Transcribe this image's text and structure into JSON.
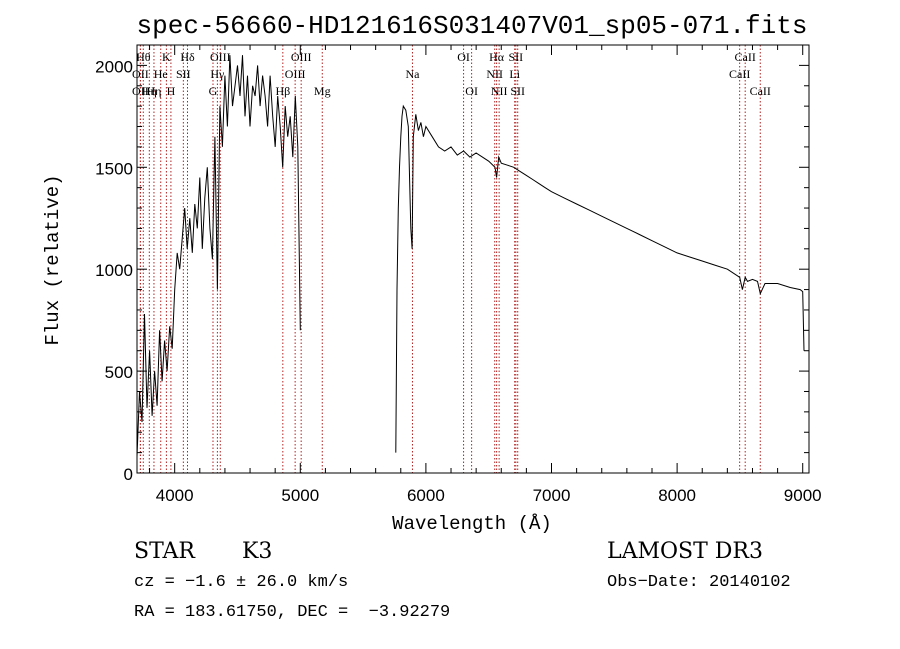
{
  "chart_data": {
    "type": "line",
    "title": "spec-56660-HD121616S031407V01_sp05-071.fits",
    "xlabel": "Wavelength (Å)",
    "ylabel": "Flux (relative)",
    "xlim": [
      3700,
      9050
    ],
    "ylim": [
      0,
      2100
    ],
    "xticks": [
      4000,
      5000,
      6000,
      7000,
      8000,
      9000
    ],
    "yticks": [
      0,
      500,
      1000,
      1500,
      2000
    ],
    "grid": false,
    "series": [
      {
        "x": [
          3700,
          3720,
          3740,
          3760,
          3780,
          3800,
          3820,
          3840,
          3860,
          3880,
          3900,
          3920,
          3940,
          3960,
          3980,
          4000,
          4020,
          4040,
          4060,
          4080,
          4100,
          4120,
          4140,
          4160,
          4180,
          4200,
          4220,
          4240,
          4260,
          4280,
          4300,
          4320,
          4340,
          4360,
          4380,
          4400,
          4420,
          4440,
          4460,
          4480,
          4500,
          4520,
          4540,
          4560,
          4580,
          4600,
          4620,
          4640,
          4660,
          4680,
          4700,
          4720,
          4740,
          4760,
          4780,
          4800,
          4820,
          4840,
          4860,
          4880,
          4900,
          4920,
          4940,
          4960,
          4980,
          5000,
          5760,
          5770,
          5780,
          5790,
          5800,
          5810,
          5820,
          5840,
          5860,
          5880,
          5890,
          5900,
          5920,
          5940,
          5960,
          5980,
          6000,
          6050,
          6100,
          6150,
          6200,
          6250,
          6300,
          6350,
          6400,
          6450,
          6500,
          6550,
          6563,
          6580,
          6600,
          6650,
          6700,
          6750,
          6800,
          6850,
          6900,
          6950,
          7000,
          7100,
          7200,
          7300,
          7400,
          7500,
          7600,
          7700,
          7800,
          7900,
          8000,
          8100,
          8200,
          8300,
          8400,
          8498,
          8520,
          8542,
          8560,
          8600,
          8640,
          8662,
          8700,
          8800,
          8900,
          8980,
          9000,
          9010
        ],
        "y": [
          80,
          400,
          250,
          780,
          320,
          600,
          280,
          500,
          330,
          700,
          450,
          650,
          500,
          720,
          610,
          900,
          1080,
          1000,
          1150,
          1300,
          1100,
          1250,
          1080,
          1320,
          1200,
          1450,
          1100,
          1350,
          1500,
          1200,
          1050,
          1650,
          900,
          1800,
          1600,
          1950,
          1700,
          2050,
          1800,
          1900,
          2000,
          1850,
          2050,
          1750,
          1950,
          1700,
          1900,
          1850,
          2000,
          1800,
          1950,
          1850,
          1700,
          1950,
          1750,
          1600,
          1850,
          1700,
          1500,
          1800,
          1650,
          1750,
          1550,
          1850,
          1600,
          700,
          100,
          900,
          1300,
          1500,
          1650,
          1750,
          1800,
          1780,
          1700,
          1200,
          1100,
          1650,
          1760,
          1680,
          1720,
          1650,
          1700,
          1650,
          1600,
          1580,
          1600,
          1560,
          1580,
          1550,
          1570,
          1550,
          1530,
          1500,
          1450,
          1550,
          1520,
          1510,
          1500,
          1480,
          1460,
          1440,
          1420,
          1400,
          1380,
          1350,
          1320,
          1290,
          1260,
          1230,
          1200,
          1170,
          1140,
          1110,
          1080,
          1060,
          1040,
          1020,
          1000,
          960,
          900,
          960,
          940,
          950,
          940,
          880,
          930,
          930,
          910,
          900,
          890,
          600
        ]
      }
    ],
    "lines": [
      {
        "x": 3750,
        "label": "Hθ",
        "row": 0
      },
      {
        "x": 3727,
        "label": "OII",
        "row": 1
      },
      {
        "x": 3727,
        "label": "OII",
        "row": 2
      },
      {
        "x": 3798,
        "label": "Hη",
        "row": 2
      },
      {
        "x": 3835,
        "label": "Hη",
        "row": 2
      },
      {
        "x": 3889,
        "label": "He",
        "row": 1
      },
      {
        "x": 3934,
        "label": "K",
        "row": 0
      },
      {
        "x": 3970,
        "label": "H",
        "row": 2
      },
      {
        "x": 4069,
        "label": "SII",
        "row": 1
      },
      {
        "x": 4102,
        "label": "Hδ",
        "row": 0
      },
      {
        "x": 4305,
        "label": "G",
        "row": 2
      },
      {
        "x": 4340,
        "label": "Hγ",
        "row": 1
      },
      {
        "x": 4363,
        "label": "OIII",
        "row": 0
      },
      {
        "x": 4861,
        "label": "Hβ",
        "row": 2
      },
      {
        "x": 4959,
        "label": "OIII",
        "row": 1
      },
      {
        "x": 5007,
        "label": "OIII",
        "row": 0
      },
      {
        "x": 5175,
        "label": "Mg",
        "row": 2
      },
      {
        "x": 5893,
        "label": "Na",
        "row": 1
      },
      {
        "x": 6300,
        "label": "OI",
        "row": 0
      },
      {
        "x": 6364,
        "label": "OI",
        "row": 2
      },
      {
        "x": 6548,
        "label": "NII",
        "row": 1
      },
      {
        "x": 6563,
        "label": "Hα",
        "row": 0
      },
      {
        "x": 6583,
        "label": "NII",
        "row": 2
      },
      {
        "x": 6707,
        "label": "Li",
        "row": 1
      },
      {
        "x": 6716,
        "label": "SII",
        "row": 0
      },
      {
        "x": 6731,
        "label": "SII",
        "row": 2
      },
      {
        "x": 8498,
        "label": "CaII",
        "row": 1
      },
      {
        "x": 8542,
        "label": "CaII",
        "row": 0
      },
      {
        "x": 8662,
        "label": "CaII",
        "row": 2
      }
    ]
  },
  "info": {
    "class": "STAR",
    "subclass": "K3",
    "survey": "LAMOST DR3",
    "redshift": "cz = −1.6 ± 26.0 km/s",
    "obs_date": "Obs−Date: 20140102",
    "coords": "RA = 183.61750, DEC =  −3.92279"
  }
}
